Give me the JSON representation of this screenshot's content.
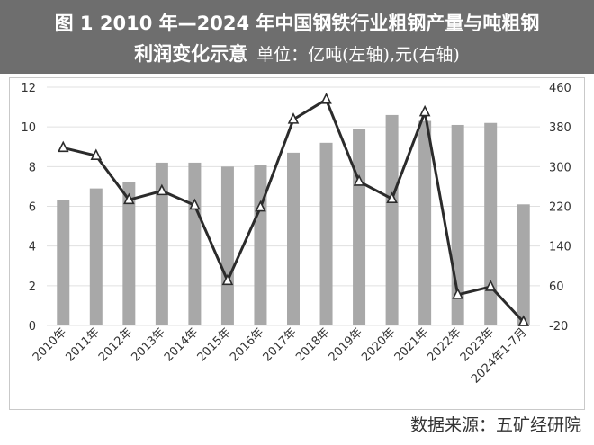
{
  "header": {
    "line1": "图 1 2010 年—2024 年中国钢铁行业粗钢产量与吨粗钢",
    "line2": "利润变化示意",
    "unit": "单位：亿吨(左轴),元(右轴)"
  },
  "source": "数据来源：五矿经研院",
  "colors": {
    "bar": "#a8a8a8",
    "line": "#2b2b2b",
    "header_bg": "#6e6e6e",
    "grid": "#e0e0e0"
  },
  "chart_data": {
    "type": "bar+line",
    "categories": [
      "2010年",
      "2011年",
      "2012年",
      "2013年",
      "2014年",
      "2015年",
      "2016年",
      "2017年",
      "2018年",
      "2019年",
      "2020年",
      "2021年",
      "2022年",
      "2023年",
      "2024年1-7月"
    ],
    "series": [
      {
        "values": [
          6.3,
          6.9,
          7.2,
          8.2,
          8.2,
          8.0,
          8.1,
          8.7,
          9.2,
          9.9,
          10.6,
          10.3,
          10.1,
          10.2,
          6.1
        ],
        "axis": "left",
        "render": "bar"
      },
      {
        "values": [
          338,
          322,
          233,
          251,
          222,
          70,
          218,
          395,
          435,
          270,
          235,
          410,
          42,
          58,
          -13
        ],
        "axis": "right",
        "render": "line",
        "marker": "triangle"
      }
    ],
    "y_left": {
      "lim": [
        0,
        12
      ],
      "ticks": [
        "0",
        "2",
        "4",
        "6",
        "8",
        "10",
        "12"
      ]
    },
    "y_right": {
      "lim": [
        -20,
        460
      ],
      "ticks": [
        "-20",
        "60",
        "140",
        "220",
        "300",
        "380",
        "460"
      ]
    },
    "grid": true
  }
}
